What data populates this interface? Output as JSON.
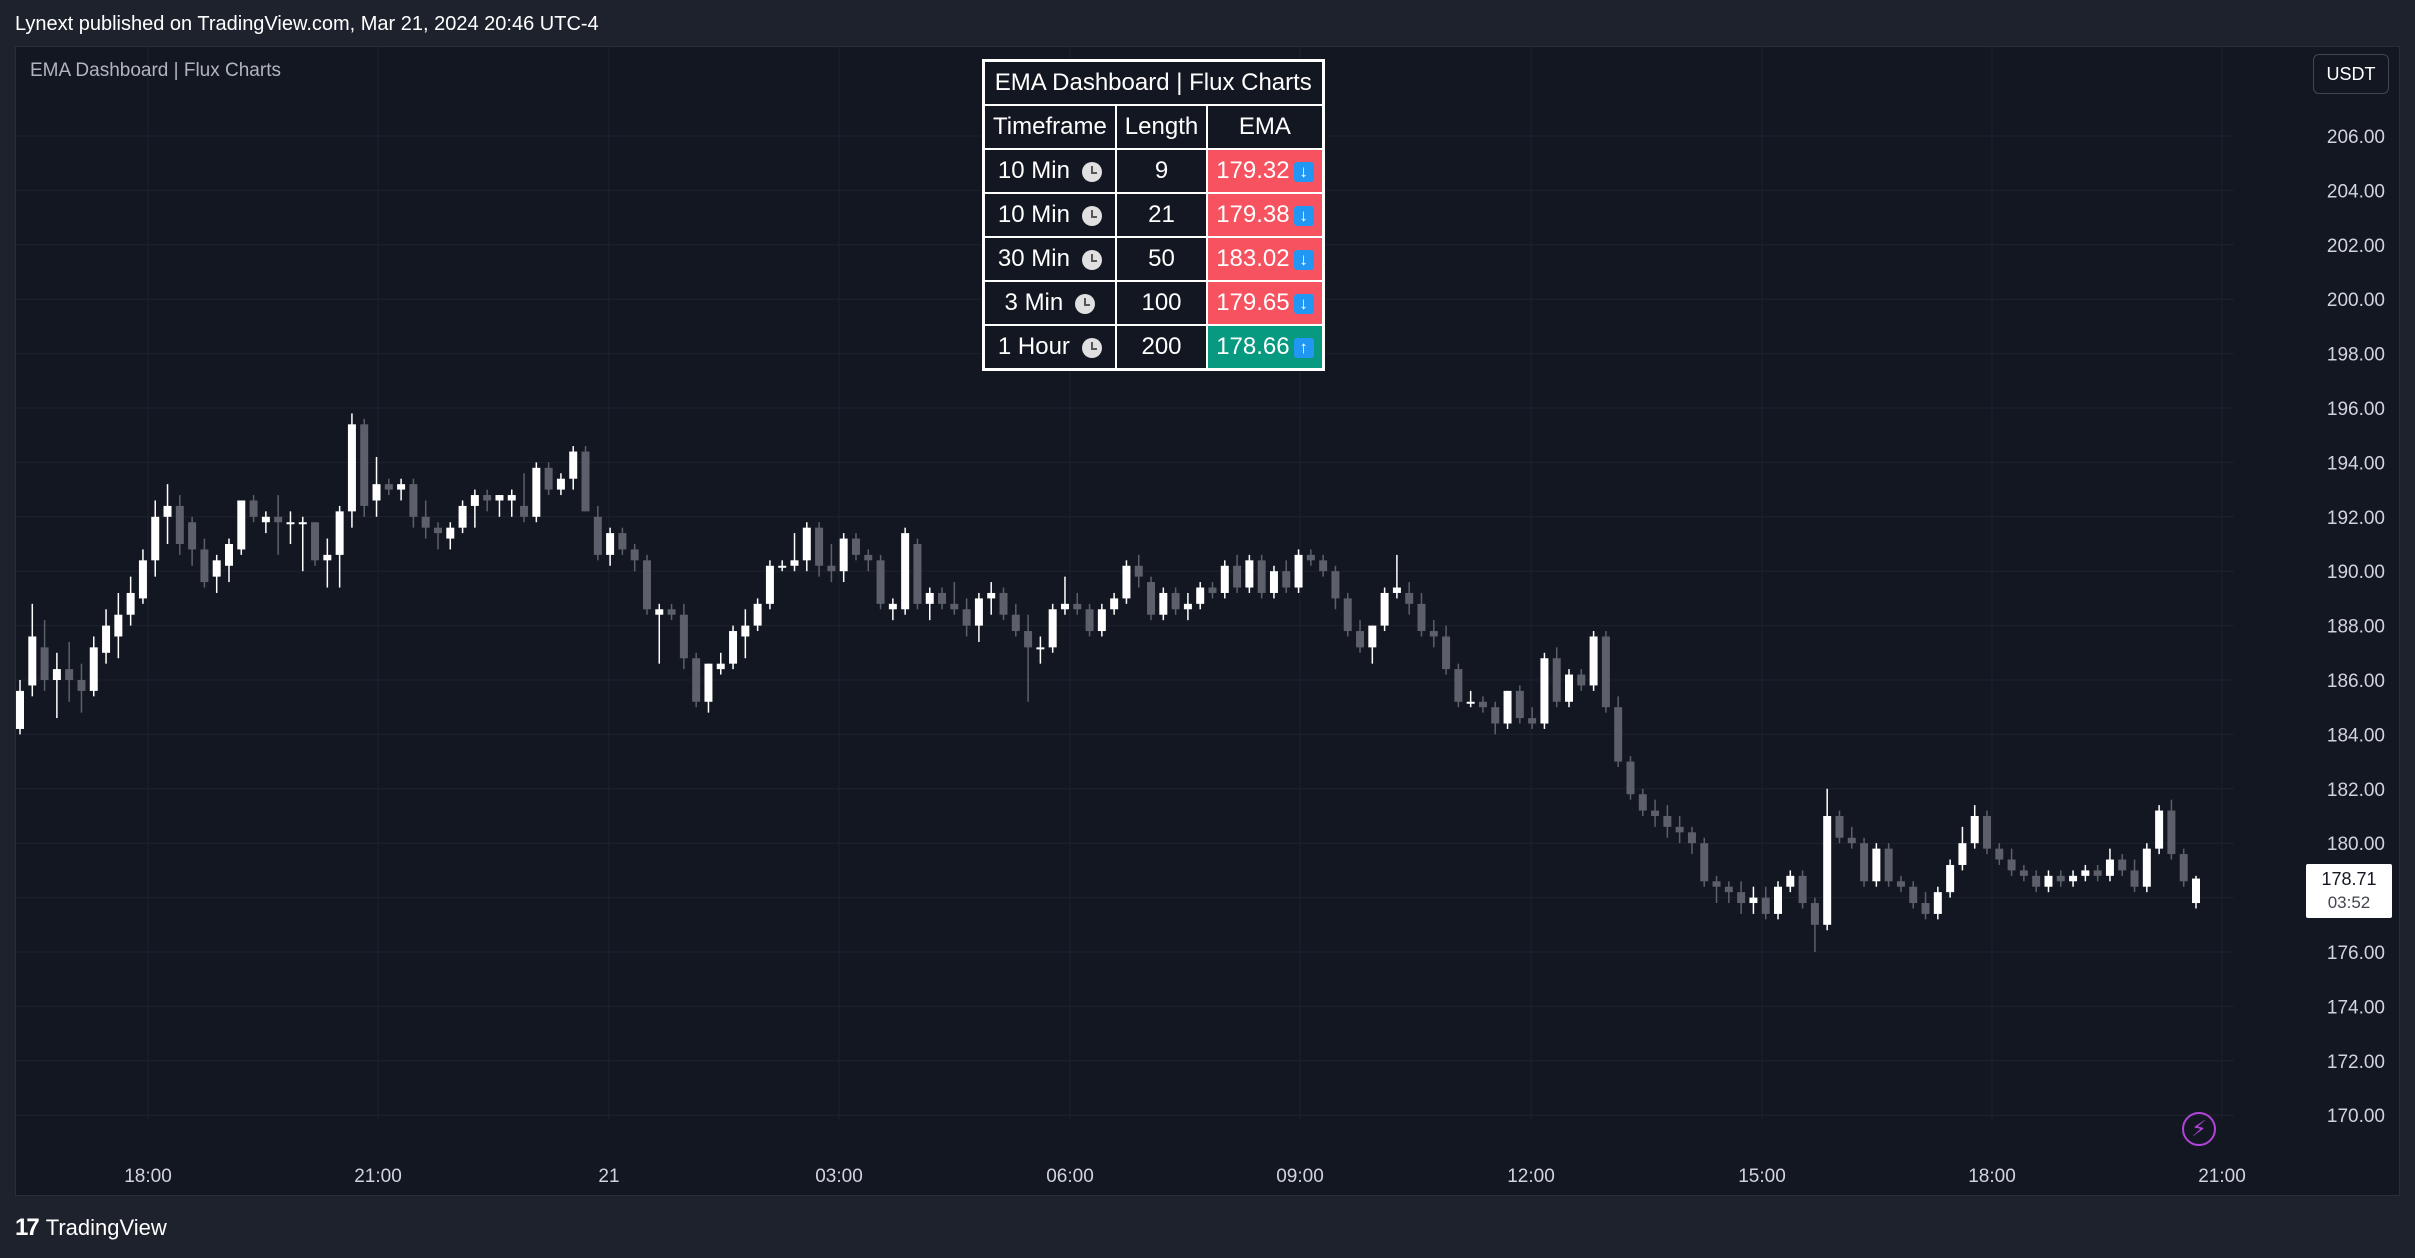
{
  "header": {
    "published": "Lynext published on TradingView.com, Mar 21, 2024 20:46 UTC-4"
  },
  "indicator": {
    "title": "EMA Dashboard | Flux Charts"
  },
  "currency": "USDT",
  "footer": {
    "brand": "TradingView",
    "logo": "17"
  },
  "last_price": {
    "value": "178.71",
    "countdown": "03:52"
  },
  "icons": {
    "clock": "clock-icon",
    "down": "arrow-down-icon",
    "up": "arrow-up-icon",
    "bolt": "lightning-icon"
  },
  "colors": {
    "bull": "#ffffff",
    "bear": "#5d606b",
    "down_cell": "#f7525f",
    "up_cell": "#089981",
    "arrow": "#2196f3"
  },
  "dashboard": {
    "title": "EMA Dashboard | Flux Charts",
    "headers": [
      "Timeframe",
      "Length",
      "EMA"
    ],
    "rows": [
      {
        "timeframe": "10 Min",
        "length": "9",
        "ema": "179.32",
        "trend": "down"
      },
      {
        "timeframe": "10 Min",
        "length": "21",
        "ema": "179.38",
        "trend": "down"
      },
      {
        "timeframe": "30 Min",
        "length": "50",
        "ema": "183.02",
        "trend": "down"
      },
      {
        "timeframe": "3 Min",
        "length": "100",
        "ema": "179.65",
        "trend": "down"
      },
      {
        "timeframe": "1 Hour",
        "length": "200",
        "ema": "178.66",
        "trend": "up"
      }
    ]
  },
  "chart_data": {
    "type": "candlestick",
    "ylim": [
      169,
      207
    ],
    "y_ticks": [
      "206.00",
      "204.00",
      "202.00",
      "200.00",
      "198.00",
      "196.00",
      "194.00",
      "192.00",
      "190.00",
      "188.00",
      "186.00",
      "184.00",
      "182.00",
      "180.00",
      "178.00",
      "176.00",
      "174.00",
      "172.00",
      "170.00"
    ],
    "x_ticks": [
      "18:00",
      "21:00",
      "21",
      "03:00",
      "06:00",
      "09:00",
      "12:00",
      "15:00",
      "18:00",
      "21:00"
    ],
    "candles": [
      {
        "o": 184.2,
        "h": 186.0,
        "l": 184.0,
        "c": 185.6
      },
      {
        "o": 185.8,
        "h": 188.8,
        "l": 185.4,
        "c": 187.6
      },
      {
        "o": 187.2,
        "h": 188.2,
        "l": 185.6,
        "c": 186.0
      },
      {
        "o": 186.0,
        "h": 187.0,
        "l": 184.6,
        "c": 186.4
      },
      {
        "o": 186.4,
        "h": 187.4,
        "l": 185.2,
        "c": 186.0
      },
      {
        "o": 186.0,
        "h": 186.6,
        "l": 184.8,
        "c": 185.6
      },
      {
        "o": 185.6,
        "h": 187.6,
        "l": 185.4,
        "c": 187.2
      },
      {
        "o": 187.0,
        "h": 188.6,
        "l": 186.6,
        "c": 188.0
      },
      {
        "o": 187.6,
        "h": 189.2,
        "l": 186.8,
        "c": 188.4
      },
      {
        "o": 188.4,
        "h": 189.8,
        "l": 188.0,
        "c": 189.2
      },
      {
        "o": 189.0,
        "h": 190.8,
        "l": 188.8,
        "c": 190.4
      },
      {
        "o": 190.4,
        "h": 192.6,
        "l": 189.8,
        "c": 192.0
      },
      {
        "o": 192.0,
        "h": 193.2,
        "l": 191.0,
        "c": 192.4
      },
      {
        "o": 192.4,
        "h": 192.8,
        "l": 190.6,
        "c": 191.0
      },
      {
        "o": 191.8,
        "h": 192.0,
        "l": 190.2,
        "c": 190.8
      },
      {
        "o": 190.8,
        "h": 191.2,
        "l": 189.4,
        "c": 189.6
      },
      {
        "o": 189.8,
        "h": 190.6,
        "l": 189.2,
        "c": 190.4
      },
      {
        "o": 190.2,
        "h": 191.2,
        "l": 189.6,
        "c": 191.0
      },
      {
        "o": 190.8,
        "h": 192.6,
        "l": 190.6,
        "c": 192.6
      },
      {
        "o": 192.6,
        "h": 192.8,
        "l": 191.8,
        "c": 192.0
      },
      {
        "o": 191.8,
        "h": 192.2,
        "l": 191.4,
        "c": 192.0
      },
      {
        "o": 192.0,
        "h": 192.8,
        "l": 190.6,
        "c": 191.8
      },
      {
        "o": 191.8,
        "h": 192.2,
        "l": 191.0,
        "c": 191.8
      },
      {
        "o": 191.8,
        "h": 192.0,
        "l": 190.0,
        "c": 191.8
      },
      {
        "o": 191.8,
        "h": 191.8,
        "l": 190.2,
        "c": 190.4
      },
      {
        "o": 190.4,
        "h": 191.2,
        "l": 189.4,
        "c": 190.6
      },
      {
        "o": 190.6,
        "h": 192.4,
        "l": 189.4,
        "c": 192.2
      },
      {
        "o": 192.2,
        "h": 195.8,
        "l": 191.6,
        "c": 195.4
      },
      {
        "o": 195.4,
        "h": 195.6,
        "l": 192.0,
        "c": 192.4
      },
      {
        "o": 192.6,
        "h": 194.2,
        "l": 192.0,
        "c": 193.2
      },
      {
        "o": 193.2,
        "h": 193.4,
        "l": 192.8,
        "c": 193.0
      },
      {
        "o": 193.0,
        "h": 193.4,
        "l": 192.6,
        "c": 193.2
      },
      {
        "o": 193.2,
        "h": 193.4,
        "l": 191.6,
        "c": 192.0
      },
      {
        "o": 192.0,
        "h": 192.6,
        "l": 191.2,
        "c": 191.6
      },
      {
        "o": 191.6,
        "h": 191.8,
        "l": 190.8,
        "c": 191.4
      },
      {
        "o": 191.2,
        "h": 191.8,
        "l": 190.8,
        "c": 191.6
      },
      {
        "o": 191.6,
        "h": 192.6,
        "l": 191.4,
        "c": 192.4
      },
      {
        "o": 192.4,
        "h": 193.0,
        "l": 191.6,
        "c": 192.8
      },
      {
        "o": 192.8,
        "h": 193.0,
        "l": 192.2,
        "c": 192.6
      },
      {
        "o": 192.6,
        "h": 192.8,
        "l": 192.0,
        "c": 192.8
      },
      {
        "o": 192.6,
        "h": 193.0,
        "l": 192.0,
        "c": 192.8
      },
      {
        "o": 192.4,
        "h": 193.6,
        "l": 191.8,
        "c": 192.0
      },
      {
        "o": 192.0,
        "h": 194.0,
        "l": 191.8,
        "c": 193.8
      },
      {
        "o": 193.8,
        "h": 194.0,
        "l": 192.8,
        "c": 193.0
      },
      {
        "o": 193.0,
        "h": 193.6,
        "l": 192.8,
        "c": 193.4
      },
      {
        "o": 193.4,
        "h": 194.6,
        "l": 193.0,
        "c": 194.4
      },
      {
        "o": 194.4,
        "h": 194.6,
        "l": 192.2,
        "c": 192.2
      },
      {
        "o": 192.0,
        "h": 192.4,
        "l": 190.4,
        "c": 190.6
      },
      {
        "o": 190.6,
        "h": 191.6,
        "l": 190.2,
        "c": 191.4
      },
      {
        "o": 191.4,
        "h": 191.6,
        "l": 190.6,
        "c": 190.8
      },
      {
        "o": 190.8,
        "h": 191.0,
        "l": 190.0,
        "c": 190.4
      },
      {
        "o": 190.4,
        "h": 190.6,
        "l": 188.4,
        "c": 188.6
      },
      {
        "o": 188.4,
        "h": 188.8,
        "l": 186.6,
        "c": 188.6
      },
      {
        "o": 188.6,
        "h": 188.8,
        "l": 188.2,
        "c": 188.4
      },
      {
        "o": 188.4,
        "h": 188.8,
        "l": 186.4,
        "c": 186.8
      },
      {
        "o": 186.8,
        "h": 187.0,
        "l": 185.0,
        "c": 185.2
      },
      {
        "o": 185.2,
        "h": 186.6,
        "l": 184.8,
        "c": 186.6
      },
      {
        "o": 186.4,
        "h": 187.0,
        "l": 186.2,
        "c": 186.6
      },
      {
        "o": 186.6,
        "h": 188.0,
        "l": 186.4,
        "c": 187.8
      },
      {
        "o": 187.6,
        "h": 188.6,
        "l": 186.8,
        "c": 188.0
      },
      {
        "o": 188.0,
        "h": 189.0,
        "l": 187.8,
        "c": 188.8
      },
      {
        "o": 188.8,
        "h": 190.4,
        "l": 188.6,
        "c": 190.2
      },
      {
        "o": 190.2,
        "h": 190.4,
        "l": 190.0,
        "c": 190.2
      },
      {
        "o": 190.2,
        "h": 191.4,
        "l": 190.0,
        "c": 190.4
      },
      {
        "o": 190.4,
        "h": 191.8,
        "l": 190.0,
        "c": 191.6
      },
      {
        "o": 191.6,
        "h": 191.8,
        "l": 189.8,
        "c": 190.2
      },
      {
        "o": 190.2,
        "h": 191.0,
        "l": 189.6,
        "c": 190.0
      },
      {
        "o": 190.0,
        "h": 191.4,
        "l": 189.6,
        "c": 191.2
      },
      {
        "o": 191.2,
        "h": 191.4,
        "l": 190.4,
        "c": 190.6
      },
      {
        "o": 190.6,
        "h": 190.8,
        "l": 190.0,
        "c": 190.4
      },
      {
        "o": 190.4,
        "h": 190.6,
        "l": 188.6,
        "c": 188.8
      },
      {
        "o": 188.6,
        "h": 189.0,
        "l": 188.2,
        "c": 188.8
      },
      {
        "o": 188.6,
        "h": 191.6,
        "l": 188.4,
        "c": 191.4
      },
      {
        "o": 191.0,
        "h": 191.2,
        "l": 188.6,
        "c": 188.8
      },
      {
        "o": 188.8,
        "h": 189.4,
        "l": 188.2,
        "c": 189.2
      },
      {
        "o": 189.2,
        "h": 189.4,
        "l": 188.6,
        "c": 188.8
      },
      {
        "o": 188.8,
        "h": 189.6,
        "l": 188.4,
        "c": 188.6
      },
      {
        "o": 188.6,
        "h": 189.0,
        "l": 187.6,
        "c": 188.0
      },
      {
        "o": 188.0,
        "h": 189.2,
        "l": 187.4,
        "c": 189.0
      },
      {
        "o": 189.0,
        "h": 189.6,
        "l": 188.4,
        "c": 189.2
      },
      {
        "o": 189.2,
        "h": 189.4,
        "l": 188.2,
        "c": 188.4
      },
      {
        "o": 188.4,
        "h": 188.8,
        "l": 187.6,
        "c": 187.8
      },
      {
        "o": 187.8,
        "h": 188.4,
        "l": 185.2,
        "c": 187.2
      },
      {
        "o": 187.2,
        "h": 187.6,
        "l": 186.6,
        "c": 187.2
      },
      {
        "o": 187.2,
        "h": 188.8,
        "l": 187.0,
        "c": 188.6
      },
      {
        "o": 188.6,
        "h": 189.8,
        "l": 188.4,
        "c": 188.8
      },
      {
        "o": 188.8,
        "h": 189.2,
        "l": 188.4,
        "c": 188.6
      },
      {
        "o": 188.6,
        "h": 188.8,
        "l": 187.6,
        "c": 187.8
      },
      {
        "o": 187.8,
        "h": 188.8,
        "l": 187.6,
        "c": 188.6
      },
      {
        "o": 188.6,
        "h": 189.2,
        "l": 188.4,
        "c": 189.0
      },
      {
        "o": 189.0,
        "h": 190.4,
        "l": 188.8,
        "c": 190.2
      },
      {
        "o": 190.2,
        "h": 190.6,
        "l": 189.4,
        "c": 189.8
      },
      {
        "o": 189.6,
        "h": 189.8,
        "l": 188.2,
        "c": 188.4
      },
      {
        "o": 188.4,
        "h": 189.4,
        "l": 188.2,
        "c": 189.2
      },
      {
        "o": 189.2,
        "h": 189.4,
        "l": 188.4,
        "c": 188.6
      },
      {
        "o": 188.6,
        "h": 189.2,
        "l": 188.2,
        "c": 188.8
      },
      {
        "o": 188.8,
        "h": 189.6,
        "l": 188.6,
        "c": 189.4
      },
      {
        "o": 189.4,
        "h": 189.6,
        "l": 189.0,
        "c": 189.2
      },
      {
        "o": 189.2,
        "h": 190.4,
        "l": 189.0,
        "c": 190.2
      },
      {
        "o": 190.2,
        "h": 190.6,
        "l": 189.2,
        "c": 189.4
      },
      {
        "o": 189.4,
        "h": 190.6,
        "l": 189.2,
        "c": 190.4
      },
      {
        "o": 190.4,
        "h": 190.6,
        "l": 189.0,
        "c": 189.2
      },
      {
        "o": 189.2,
        "h": 190.2,
        "l": 189.0,
        "c": 190.0
      },
      {
        "o": 190.0,
        "h": 190.4,
        "l": 189.2,
        "c": 189.4
      },
      {
        "o": 189.4,
        "h": 190.8,
        "l": 189.2,
        "c": 190.6
      },
      {
        "o": 190.6,
        "h": 190.8,
        "l": 190.2,
        "c": 190.4
      },
      {
        "o": 190.4,
        "h": 190.6,
        "l": 189.8,
        "c": 190.0
      },
      {
        "o": 190.0,
        "h": 190.2,
        "l": 188.6,
        "c": 189.0
      },
      {
        "o": 189.0,
        "h": 189.2,
        "l": 187.6,
        "c": 187.8
      },
      {
        "o": 187.8,
        "h": 188.2,
        "l": 187.0,
        "c": 187.2
      },
      {
        "o": 187.2,
        "h": 188.0,
        "l": 186.6,
        "c": 188.0
      },
      {
        "o": 188.0,
        "h": 189.4,
        "l": 187.8,
        "c": 189.2
      },
      {
        "o": 189.2,
        "h": 190.6,
        "l": 189.0,
        "c": 189.4
      },
      {
        "o": 189.2,
        "h": 189.6,
        "l": 188.4,
        "c": 188.8
      },
      {
        "o": 188.8,
        "h": 189.2,
        "l": 187.6,
        "c": 187.8
      },
      {
        "o": 187.8,
        "h": 188.2,
        "l": 187.2,
        "c": 187.6
      },
      {
        "o": 187.6,
        "h": 188.0,
        "l": 186.2,
        "c": 186.4
      },
      {
        "o": 186.4,
        "h": 186.6,
        "l": 185.0,
        "c": 185.2
      },
      {
        "o": 185.2,
        "h": 185.6,
        "l": 185.0,
        "c": 185.2
      },
      {
        "o": 185.2,
        "h": 185.4,
        "l": 184.8,
        "c": 185.0
      },
      {
        "o": 185.0,
        "h": 185.2,
        "l": 184.0,
        "c": 184.4
      },
      {
        "o": 184.4,
        "h": 185.6,
        "l": 184.2,
        "c": 185.6
      },
      {
        "o": 185.6,
        "h": 185.8,
        "l": 184.4,
        "c": 184.6
      },
      {
        "o": 184.6,
        "h": 185.0,
        "l": 184.2,
        "c": 184.4
      },
      {
        "o": 184.4,
        "h": 187.0,
        "l": 184.2,
        "c": 186.8
      },
      {
        "o": 186.8,
        "h": 187.2,
        "l": 185.0,
        "c": 185.2
      },
      {
        "o": 185.2,
        "h": 186.4,
        "l": 185.0,
        "c": 186.2
      },
      {
        "o": 186.2,
        "h": 186.4,
        "l": 185.6,
        "c": 185.8
      },
      {
        "o": 185.8,
        "h": 187.8,
        "l": 185.6,
        "c": 187.6
      },
      {
        "o": 187.6,
        "h": 187.8,
        "l": 184.8,
        "c": 185.0
      },
      {
        "o": 185.0,
        "h": 185.4,
        "l": 182.8,
        "c": 183.0
      },
      {
        "o": 183.0,
        "h": 183.2,
        "l": 181.6,
        "c": 181.8
      },
      {
        "o": 181.8,
        "h": 182.0,
        "l": 181.0,
        "c": 181.2
      },
      {
        "o": 181.2,
        "h": 181.6,
        "l": 180.6,
        "c": 181.0
      },
      {
        "o": 181.0,
        "h": 181.4,
        "l": 180.2,
        "c": 180.6
      },
      {
        "o": 180.6,
        "h": 181.0,
        "l": 180.0,
        "c": 180.4
      },
      {
        "o": 180.4,
        "h": 180.6,
        "l": 179.6,
        "c": 180.0
      },
      {
        "o": 180.0,
        "h": 180.2,
        "l": 178.4,
        "c": 178.6
      },
      {
        "o": 178.6,
        "h": 178.8,
        "l": 177.8,
        "c": 178.4
      },
      {
        "o": 178.4,
        "h": 178.6,
        "l": 177.8,
        "c": 178.2
      },
      {
        "o": 178.2,
        "h": 178.6,
        "l": 177.4,
        "c": 177.8
      },
      {
        "o": 177.8,
        "h": 178.4,
        "l": 177.4,
        "c": 178.0
      },
      {
        "o": 178.0,
        "h": 178.4,
        "l": 177.2,
        "c": 177.4
      },
      {
        "o": 177.4,
        "h": 178.6,
        "l": 177.2,
        "c": 178.4
      },
      {
        "o": 178.4,
        "h": 179.0,
        "l": 178.2,
        "c": 178.8
      },
      {
        "o": 178.8,
        "h": 179.0,
        "l": 177.6,
        "c": 177.8
      },
      {
        "o": 177.8,
        "h": 178.0,
        "l": 176.0,
        "c": 177.0
      },
      {
        "o": 177.0,
        "h": 182.0,
        "l": 176.8,
        "c": 181.0
      },
      {
        "o": 181.0,
        "h": 181.2,
        "l": 180.0,
        "c": 180.2
      },
      {
        "o": 180.2,
        "h": 180.6,
        "l": 179.8,
        "c": 180.0
      },
      {
        "o": 180.0,
        "h": 180.2,
        "l": 178.4,
        "c": 178.6
      },
      {
        "o": 178.6,
        "h": 180.0,
        "l": 178.4,
        "c": 179.8
      },
      {
        "o": 179.8,
        "h": 180.0,
        "l": 178.4,
        "c": 178.6
      },
      {
        "o": 178.6,
        "h": 178.8,
        "l": 178.2,
        "c": 178.4
      },
      {
        "o": 178.4,
        "h": 178.6,
        "l": 177.6,
        "c": 177.8
      },
      {
        "o": 177.8,
        "h": 178.2,
        "l": 177.2,
        "c": 177.4
      },
      {
        "o": 177.4,
        "h": 178.4,
        "l": 177.2,
        "c": 178.2
      },
      {
        "o": 178.2,
        "h": 179.4,
        "l": 178.0,
        "c": 179.2
      },
      {
        "o": 179.2,
        "h": 180.6,
        "l": 179.0,
        "c": 180.0
      },
      {
        "o": 180.0,
        "h": 181.4,
        "l": 179.8,
        "c": 181.0
      },
      {
        "o": 181.0,
        "h": 181.2,
        "l": 179.6,
        "c": 179.8
      },
      {
        "o": 179.8,
        "h": 180.0,
        "l": 179.2,
        "c": 179.4
      },
      {
        "o": 179.4,
        "h": 179.8,
        "l": 178.8,
        "c": 179.0
      },
      {
        "o": 179.0,
        "h": 179.2,
        "l": 178.6,
        "c": 178.8
      },
      {
        "o": 178.8,
        "h": 179.0,
        "l": 178.2,
        "c": 178.4
      },
      {
        "o": 178.4,
        "h": 179.0,
        "l": 178.2,
        "c": 178.8
      },
      {
        "o": 178.8,
        "h": 179.0,
        "l": 178.4,
        "c": 178.6
      },
      {
        "o": 178.6,
        "h": 179.0,
        "l": 178.4,
        "c": 178.8
      },
      {
        "o": 178.8,
        "h": 179.2,
        "l": 178.6,
        "c": 179.0
      },
      {
        "o": 179.0,
        "h": 179.2,
        "l": 178.6,
        "c": 178.8
      },
      {
        "o": 178.8,
        "h": 179.8,
        "l": 178.6,
        "c": 179.4
      },
      {
        "o": 179.4,
        "h": 179.6,
        "l": 178.8,
        "c": 179.0
      },
      {
        "o": 179.0,
        "h": 179.4,
        "l": 178.2,
        "c": 178.4
      },
      {
        "o": 178.4,
        "h": 180.0,
        "l": 178.2,
        "c": 179.8
      },
      {
        "o": 179.8,
        "h": 181.4,
        "l": 179.6,
        "c": 181.2
      },
      {
        "o": 181.2,
        "h": 181.6,
        "l": 179.4,
        "c": 179.6
      },
      {
        "o": 179.6,
        "h": 179.8,
        "l": 178.4,
        "c": 178.6
      },
      {
        "o": 177.8,
        "h": 178.8,
        "l": 177.6,
        "c": 178.7
      }
    ]
  }
}
